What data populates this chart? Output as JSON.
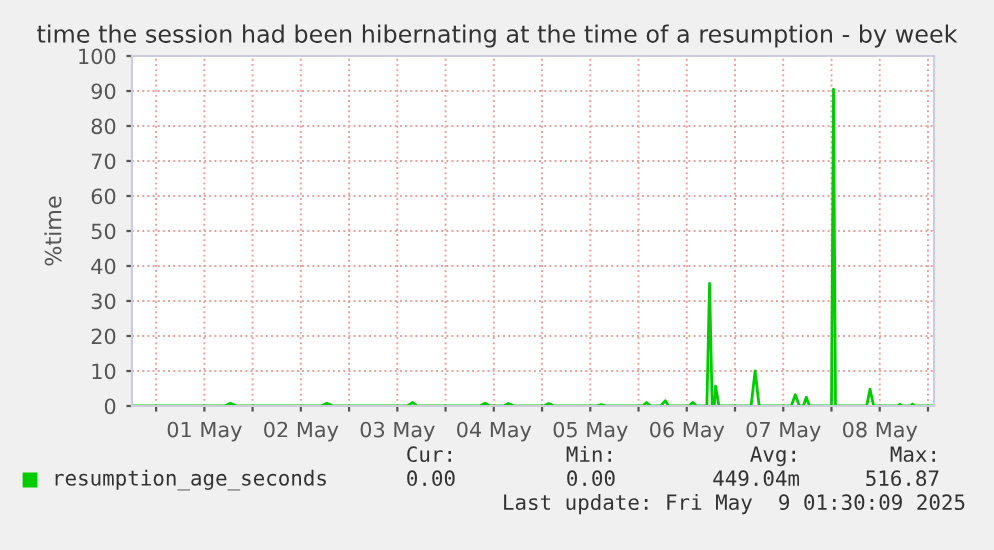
{
  "chart_data": {
    "type": "line",
    "title": "time the session had been hibernating at the time of a resumption - by week",
    "ylabel": "%time",
    "x": [
      "2025-04-30T18:00",
      "2025-05-01T17:00",
      "2025-05-01T18:30",
      "2025-05-01T20:00",
      "2025-05-02T17:00",
      "2025-05-02T18:30",
      "2025-05-02T20:00",
      "2025-05-03T14:30",
      "2025-05-03T15:50",
      "2025-05-03T17:00",
      "2025-05-04T08:30",
      "2025-05-04T09:50",
      "2025-05-04T11:00",
      "2025-05-04T14:30",
      "2025-05-04T15:40",
      "2025-05-04T17:00",
      "2025-05-05T00:30",
      "2025-05-05T01:40",
      "2025-05-05T03:00",
      "2025-05-05T13:30",
      "2025-05-05T14:40",
      "2025-05-05T16:00",
      "2025-05-06T01:00",
      "2025-05-06T02:00",
      "2025-05-06T03:00",
      "2025-05-06T05:30",
      "2025-05-06T06:40",
      "2025-05-06T07:30",
      "2025-05-06T12:30",
      "2025-05-06T13:30",
      "2025-05-06T14:30",
      "2025-05-06T17:00",
      "2025-05-06T17:40",
      "2025-05-06T18:20",
      "2025-05-06T18:50",
      "2025-05-06T19:10",
      "2025-05-06T20:00",
      "2025-05-07T04:00",
      "2025-05-07T05:00",
      "2025-05-07T06:00",
      "2025-05-07T14:00",
      "2025-05-07T15:00",
      "2025-05-07T16:00",
      "2025-05-07T17:00",
      "2025-05-07T17:45",
      "2025-05-07T18:30",
      "2025-05-08T00:00",
      "2025-05-08T00:30",
      "2025-05-08T01:00",
      "2025-05-08T08:45",
      "2025-05-08T09:35",
      "2025-05-08T10:30",
      "2025-05-08T16:30",
      "2025-05-08T17:00",
      "2025-05-08T17:30",
      "2025-05-08T19:40",
      "2025-05-08T20:10",
      "2025-05-08T20:40",
      "2025-05-09T01:30"
    ],
    "series": [
      {
        "name": "resumption_age_seconds",
        "color": "#00cc00",
        "values": [
          0,
          0,
          0.8,
          0,
          0,
          0.8,
          0,
          0,
          1,
          0,
          0,
          0.8,
          0,
          0,
          0.7,
          0,
          0,
          0.7,
          0,
          0,
          0.4,
          0,
          0,
          1,
          0,
          0,
          1.5,
          0,
          0,
          1,
          0,
          0,
          35,
          0,
          0,
          5.7,
          0,
          0,
          10,
          0,
          0,
          3.2,
          0,
          0,
          2.5,
          0,
          0,
          90.5,
          0,
          0,
          4.8,
          0,
          0,
          0.5,
          0,
          0,
          0.6,
          0,
          0
        ]
      }
    ],
    "xlim": [
      "2025-04-30T18:00",
      "2025-05-09T01:30"
    ],
    "xticks": [
      {
        "value": "2025-05-01T00:00",
        "label": null
      },
      {
        "value": "2025-05-01T12:00",
        "label": "01 May"
      },
      {
        "value": "2025-05-02T00:00",
        "label": null
      },
      {
        "value": "2025-05-02T12:00",
        "label": "02 May"
      },
      {
        "value": "2025-05-03T00:00",
        "label": null
      },
      {
        "value": "2025-05-03T12:00",
        "label": "03 May"
      },
      {
        "value": "2025-05-04T00:00",
        "label": null
      },
      {
        "value": "2025-05-04T12:00",
        "label": "04 May"
      },
      {
        "value": "2025-05-05T00:00",
        "label": null
      },
      {
        "value": "2025-05-05T12:00",
        "label": "05 May"
      },
      {
        "value": "2025-05-06T00:00",
        "label": null
      },
      {
        "value": "2025-05-06T12:00",
        "label": "06 May"
      },
      {
        "value": "2025-05-07T00:00",
        "label": null
      },
      {
        "value": "2025-05-07T12:00",
        "label": "07 May"
      },
      {
        "value": "2025-05-08T00:00",
        "label": null
      },
      {
        "value": "2025-05-08T12:00",
        "label": "08 May"
      },
      {
        "value": "2025-05-09T00:00",
        "label": null
      }
    ],
    "ylim": [
      0,
      100
    ],
    "yticks": [
      0,
      10,
      20,
      30,
      40,
      50,
      60,
      70,
      80,
      90,
      100
    ],
    "grid": true,
    "legend": "bottom",
    "marker": "none",
    "line_style": "solid",
    "annotations": [
      "Cur:",
      "Min:",
      "Avg:",
      "Max:",
      "0.00",
      "0.00",
      "449.04m",
      "516.87",
      "Last update: Fri May  9 01:30:09 2025"
    ]
  }
}
